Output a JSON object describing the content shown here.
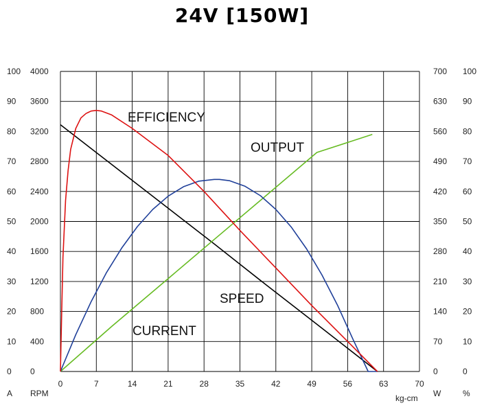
{
  "chart_data": {
    "type": "line",
    "title": "24V [150W]",
    "xlabel": "kg-cm",
    "xlim": [
      0,
      70
    ],
    "x_ticks": [
      "0",
      "7",
      "14",
      "21",
      "28",
      "35",
      "42",
      "49",
      "56",
      "63",
      "70"
    ],
    "grid": true,
    "axes": {
      "current": {
        "label": "A",
        "range": [
          0,
          100
        ],
        "ticks": [
          "0",
          "10",
          "20",
          "30",
          "40",
          "50",
          "60",
          "70",
          "80",
          "90",
          "100"
        ]
      },
      "speed": {
        "label": "RPM",
        "range": [
          0,
          4000
        ],
        "ticks": [
          "0",
          "400",
          "800",
          "1200",
          "1600",
          "2000",
          "2400",
          "2800",
          "3200",
          "3600",
          "4000"
        ]
      },
      "output": {
        "label": "W",
        "range": [
          0,
          700
        ],
        "ticks": [
          "0",
          "70",
          "140",
          "210",
          "280",
          "350",
          "420",
          "490",
          "560",
          "630",
          "700"
        ]
      },
      "efficiency": {
        "label": "%",
        "range": [
          0,
          100
        ],
        "ticks": [
          "0",
          "10",
          "20",
          "30",
          "40",
          "50",
          "60",
          "70",
          "80",
          "90",
          "100"
        ]
      }
    },
    "series": [
      {
        "name": "SPEED",
        "axis": "speed",
        "color": "#000000",
        "x": [
          0,
          10,
          20,
          30,
          40,
          50,
          61.8
        ],
        "y": [
          3290,
          2760,
          2230,
          1700,
          1160,
          630,
          0
        ]
      },
      {
        "name": "CURRENT",
        "axis": "current",
        "color": "#66bb22",
        "x": [
          0,
          10,
          20,
          30,
          40,
          50,
          60.8
        ],
        "y": [
          0,
          15,
          29.5,
          44,
          58.5,
          73,
          79
        ]
      },
      {
        "name": "OUTPUT",
        "axis": "output",
        "color": "#1f3f99",
        "x": [
          0,
          3,
          6,
          9,
          12,
          15,
          18,
          21,
          24,
          27,
          30,
          31,
          33,
          36,
          39,
          42,
          45,
          48,
          51,
          54,
          57,
          60,
          61.8
        ],
        "y": [
          0,
          86,
          163,
          231,
          289,
          338,
          378,
          409,
          431,
          444,
          448,
          448,
          445,
          432,
          410,
          378,
          337,
          286,
          225,
          155,
          76,
          0,
          0
        ]
      },
      {
        "name": "EFFICIENCY",
        "axis": "efficiency",
        "color": "#dd1111",
        "x": [
          0,
          0.25,
          0.5,
          1,
          1.5,
          2,
          3,
          4,
          5,
          6,
          7,
          8,
          10,
          14,
          21,
          28,
          35,
          42,
          49,
          56,
          61.8
        ],
        "y": [
          0,
          20,
          38,
          57,
          67,
          74,
          81,
          84.5,
          86,
          86.8,
          87,
          86.8,
          85.5,
          81,
          72,
          60,
          47,
          34.5,
          22,
          10,
          0
        ]
      }
    ],
    "annotations": [
      "EFFICIENCY",
      "OUTPUT",
      "SPEED",
      "CURRENT"
    ]
  }
}
